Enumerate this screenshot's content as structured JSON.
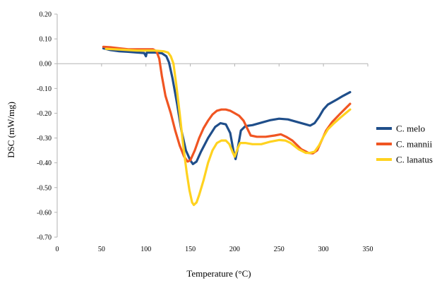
{
  "chart_data": {
    "type": "line",
    "xlabel": "Temperature (°C)",
    "ylabel": "DSC (mW/mg)",
    "xlim": [
      0,
      350
    ],
    "ylim": [
      -0.7,
      0.2
    ],
    "xticks": [
      0,
      50,
      100,
      150,
      200,
      250,
      300,
      350
    ],
    "yticks": [
      0.2,
      0.1,
      0.0,
      -0.1,
      -0.2,
      -0.3,
      -0.4,
      -0.5,
      -0.6,
      -0.7
    ],
    "xtick_labels": [
      "0",
      "50",
      "100",
      "150",
      "200",
      "250",
      "300",
      "350"
    ],
    "ytick_labels": [
      "0.20",
      "0.10",
      "0.00",
      "-0.10",
      "-0.20",
      "-0.30",
      "-0.40",
      "-0.50",
      "-0.60",
      "-0.70"
    ],
    "grid": false,
    "legend_position": "right",
    "series": [
      {
        "name": "C. melo",
        "color": "#1f4e8a",
        "points": [
          [
            52,
            0.062
          ],
          [
            60,
            0.055
          ],
          [
            70,
            0.05
          ],
          [
            80,
            0.048
          ],
          [
            90,
            0.045
          ],
          [
            98,
            0.043
          ],
          [
            100,
            0.03
          ],
          [
            101,
            0.045
          ],
          [
            110,
            0.045
          ],
          [
            118,
            0.042
          ],
          [
            123,
            0.03
          ],
          [
            126,
            0.005
          ],
          [
            130,
            -0.06
          ],
          [
            135,
            -0.16
          ],
          [
            140,
            -0.27
          ],
          [
            145,
            -0.35
          ],
          [
            150,
            -0.39
          ],
          [
            153,
            -0.405
          ],
          [
            157,
            -0.395
          ],
          [
            162,
            -0.355
          ],
          [
            170,
            -0.3
          ],
          [
            178,
            -0.255
          ],
          [
            184,
            -0.24
          ],
          [
            190,
            -0.245
          ],
          [
            195,
            -0.28
          ],
          [
            199,
            -0.36
          ],
          [
            201,
            -0.385
          ],
          [
            204,
            -0.33
          ],
          [
            207,
            -0.27
          ],
          [
            212,
            -0.252
          ],
          [
            220,
            -0.248
          ],
          [
            230,
            -0.238
          ],
          [
            240,
            -0.228
          ],
          [
            250,
            -0.222
          ],
          [
            260,
            -0.225
          ],
          [
            270,
            -0.235
          ],
          [
            280,
            -0.245
          ],
          [
            285,
            -0.25
          ],
          [
            290,
            -0.24
          ],
          [
            295,
            -0.215
          ],
          [
            300,
            -0.185
          ],
          [
            305,
            -0.165
          ],
          [
            315,
            -0.145
          ],
          [
            322,
            -0.13
          ],
          [
            330,
            -0.115
          ]
        ]
      },
      {
        "name": "C. mannii",
        "color": "#f05522",
        "points": [
          [
            52,
            0.068
          ],
          [
            60,
            0.066
          ],
          [
            70,
            0.062
          ],
          [
            80,
            0.058
          ],
          [
            90,
            0.058
          ],
          [
            100,
            0.058
          ],
          [
            108,
            0.058
          ],
          [
            112,
            0.05
          ],
          [
            115,
            0.02
          ],
          [
            118,
            -0.05
          ],
          [
            122,
            -0.13
          ],
          [
            128,
            -0.2
          ],
          [
            133,
            -0.27
          ],
          [
            138,
            -0.33
          ],
          [
            143,
            -0.375
          ],
          [
            147,
            -0.395
          ],
          [
            150,
            -0.39
          ],
          [
            155,
            -0.35
          ],
          [
            160,
            -0.3
          ],
          [
            165,
            -0.26
          ],
          [
            170,
            -0.23
          ],
          [
            175,
            -0.205
          ],
          [
            180,
            -0.19
          ],
          [
            185,
            -0.185
          ],
          [
            190,
            -0.185
          ],
          [
            195,
            -0.19
          ],
          [
            200,
            -0.2
          ],
          [
            205,
            -0.21
          ],
          [
            210,
            -0.23
          ],
          [
            214,
            -0.26
          ],
          [
            218,
            -0.29
          ],
          [
            225,
            -0.295
          ],
          [
            235,
            -0.295
          ],
          [
            245,
            -0.29
          ],
          [
            252,
            -0.285
          ],
          [
            258,
            -0.295
          ],
          [
            265,
            -0.31
          ],
          [
            275,
            -0.345
          ],
          [
            283,
            -0.36
          ],
          [
            288,
            -0.362
          ],
          [
            293,
            -0.35
          ],
          [
            298,
            -0.31
          ],
          [
            303,
            -0.27
          ],
          [
            310,
            -0.235
          ],
          [
            318,
            -0.205
          ],
          [
            325,
            -0.18
          ],
          [
            330,
            -0.162
          ]
        ]
      },
      {
        "name": "C. lanatus",
        "color": "#ffd21f",
        "points": [
          [
            55,
            0.06
          ],
          [
            70,
            0.057
          ],
          [
            80,
            0.055
          ],
          [
            90,
            0.053
          ],
          [
            100,
            0.053
          ],
          [
            110,
            0.053
          ],
          [
            120,
            0.05
          ],
          [
            125,
            0.045
          ],
          [
            128,
            0.03
          ],
          [
            131,
            0.0
          ],
          [
            134,
            -0.08
          ],
          [
            138,
            -0.2
          ],
          [
            142,
            -0.33
          ],
          [
            146,
            -0.44
          ],
          [
            149,
            -0.51
          ],
          [
            152,
            -0.56
          ],
          [
            154,
            -0.57
          ],
          [
            157,
            -0.56
          ],
          [
            160,
            -0.53
          ],
          [
            165,
            -0.47
          ],
          [
            170,
            -0.4
          ],
          [
            175,
            -0.35
          ],
          [
            180,
            -0.32
          ],
          [
            185,
            -0.31
          ],
          [
            190,
            -0.31
          ],
          [
            194,
            -0.325
          ],
          [
            198,
            -0.36
          ],
          [
            200,
            -0.375
          ],
          [
            203,
            -0.345
          ],
          [
            206,
            -0.32
          ],
          [
            212,
            -0.32
          ],
          [
            220,
            -0.325
          ],
          [
            230,
            -0.325
          ],
          [
            240,
            -0.315
          ],
          [
            250,
            -0.308
          ],
          [
            257,
            -0.31
          ],
          [
            263,
            -0.32
          ],
          [
            272,
            -0.345
          ],
          [
            280,
            -0.36
          ],
          [
            285,
            -0.36
          ],
          [
            290,
            -0.355
          ],
          [
            295,
            -0.33
          ],
          [
            300,
            -0.295
          ],
          [
            305,
            -0.265
          ],
          [
            312,
            -0.24
          ],
          [
            320,
            -0.215
          ],
          [
            325,
            -0.2
          ],
          [
            330,
            -0.185
          ]
        ]
      }
    ]
  }
}
